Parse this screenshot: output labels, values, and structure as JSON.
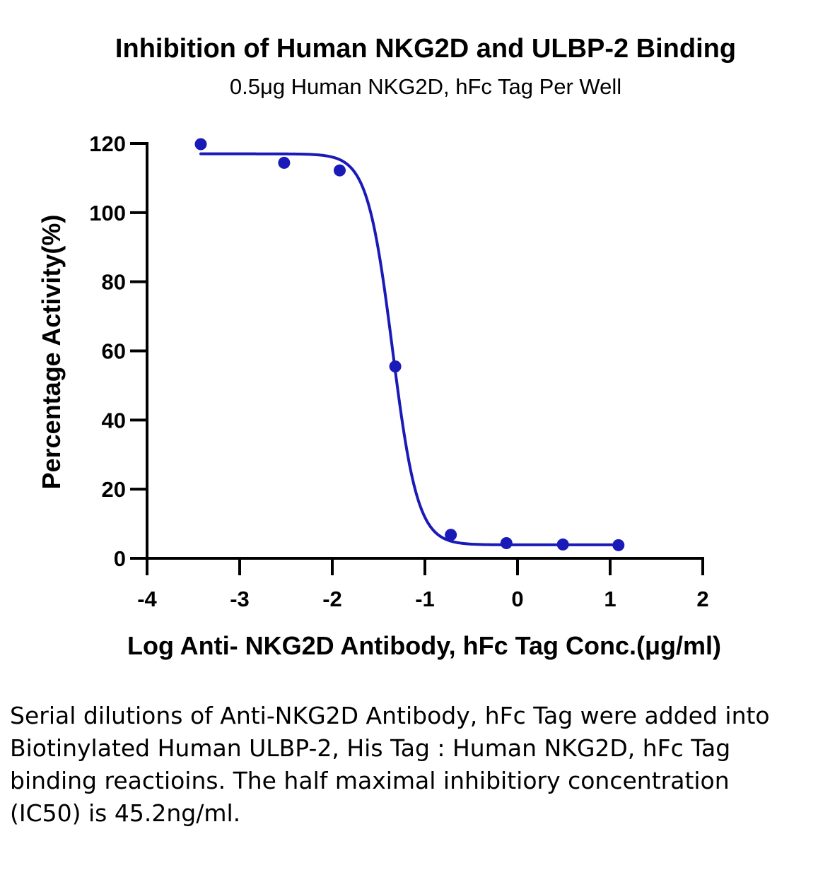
{
  "chart_data": {
    "type": "scatter",
    "title": "Inhibition of Human NKG2D and ULBP-2 Binding",
    "subtitle": "0.5μg Human NKG2D, hFc Tag Per Well",
    "xlabel": "Log Anti- NKG2D Antibody, hFc Tag Conc.(μg/ml)",
    "ylabel": "Percentage Activity(%)",
    "xlim": [
      -4,
      2
    ],
    "ylim": [
      0,
      120
    ],
    "x_ticks": [
      -4,
      -3,
      -2,
      -1,
      0,
      1,
      2
    ],
    "y_ticks": [
      0,
      20,
      40,
      60,
      80,
      100,
      120
    ],
    "grid": false,
    "series": [
      {
        "color": "#1a1ab8",
        "points": [
          {
            "x": -3.42,
            "y": 119.8
          },
          {
            "x": -2.52,
            "y": 114.4
          },
          {
            "x": -1.92,
            "y": 112.2
          },
          {
            "x": -1.32,
            "y": 55.5
          },
          {
            "x": -0.72,
            "y": 6.8
          },
          {
            "x": -0.12,
            "y": 4.4
          },
          {
            "x": 0.49,
            "y": 4.0
          },
          {
            "x": 1.09,
            "y": 3.8
          }
        ],
        "fit": {
          "model": "4PL",
          "top": 117.0,
          "bottom": 3.9,
          "logIC50": -1.35,
          "hill": -3.2,
          "x_range": [
            -3.42,
            1.09
          ]
        }
      }
    ]
  },
  "caption": "Serial dilutions of Anti-NKG2D Antibody, hFc Tag were added into Biotinylated Human ULBP-2, His Tag : Human NKG2D, hFc Tag binding reactioins. The half maximal inhibitiory concentration (IC50) is 45.2ng/ml."
}
